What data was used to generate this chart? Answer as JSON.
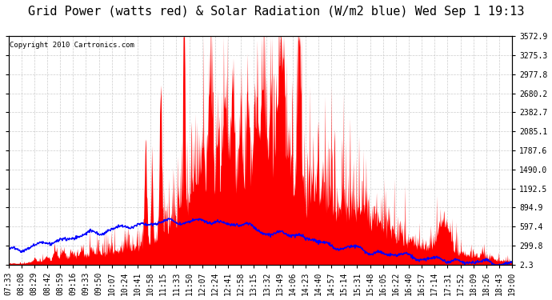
{
  "title": "Grid Power (watts red) & Solar Radiation (W/m2 blue) Wed Sep 1 19:13",
  "copyright_text": "Copyright 2010 Cartronics.com",
  "yticks": [
    2.3,
    299.8,
    597.4,
    894.9,
    1192.5,
    1490.0,
    1787.6,
    2085.1,
    2382.7,
    2680.2,
    2977.8,
    3275.3,
    3572.9
  ],
  "ymin": 0,
  "ymax": 3572.9,
  "xtick_labels": [
    "07:33",
    "08:08",
    "08:29",
    "08:42",
    "08:59",
    "09:16",
    "09:33",
    "09:50",
    "10:07",
    "10:24",
    "10:41",
    "10:58",
    "11:15",
    "11:33",
    "11:50",
    "12:07",
    "12:24",
    "12:41",
    "12:58",
    "13:15",
    "13:32",
    "13:49",
    "14:06",
    "14:23",
    "14:40",
    "14:57",
    "15:14",
    "15:31",
    "15:48",
    "16:05",
    "16:22",
    "16:40",
    "16:57",
    "17:14",
    "17:31",
    "17:52",
    "18:09",
    "18:26",
    "18:43",
    "19:00"
  ],
  "bg_color": "#ffffff",
  "plot_bg_color": "#ffffff",
  "grid_color": "#c0c0c0",
  "red_color": "#ff0000",
  "blue_color": "#0000ff",
  "title_fontsize": 11,
  "tick_fontsize": 7,
  "copyright_fontsize": 6.5
}
